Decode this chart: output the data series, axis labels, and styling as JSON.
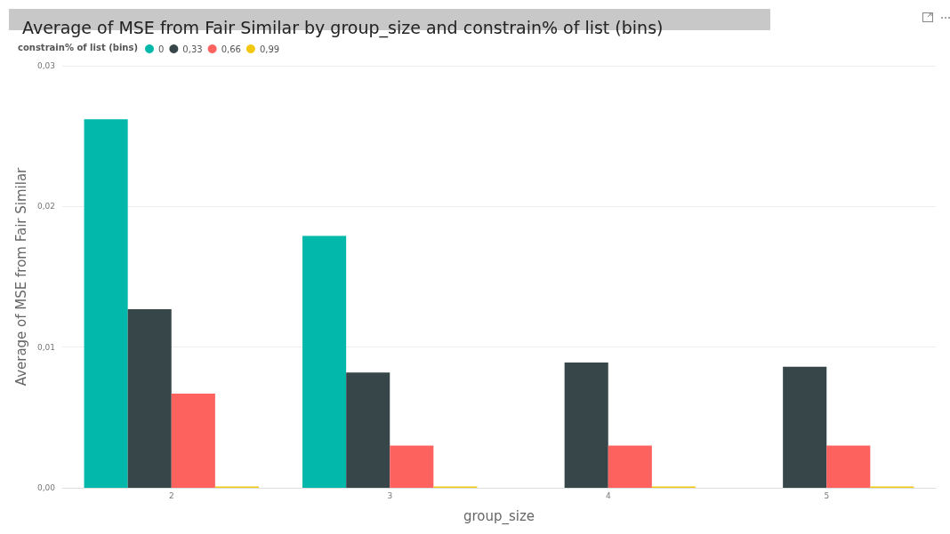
{
  "chart_data": {
    "type": "bar",
    "title": "Average of MSE from Fair Similar by group_size and constrain% of list (bins)",
    "xlabel": "group_size",
    "ylabel": "Average of MSE from Fair Similar",
    "legend_title": "constrain% of list (bins)",
    "categories": [
      "2",
      "3",
      "4",
      "5"
    ],
    "series": [
      {
        "name": "0",
        "color": "#01b8aa",
        "values": [
          0.0262,
          0.0179,
          null,
          null
        ]
      },
      {
        "name": "0,33",
        "color": "#374649",
        "values": [
          0.0127,
          0.0082,
          0.0089,
          0.0086
        ]
      },
      {
        "name": "0,66",
        "color": "#fd625e",
        "values": [
          0.0067,
          0.003,
          0.003,
          0.003
        ]
      },
      {
        "name": "0,99",
        "color": "#f2c80f",
        "values": [
          0.0001,
          0.0001,
          0.0001,
          0.0001
        ]
      }
    ],
    "ylim": [
      0,
      0.03
    ],
    "yticks": [
      {
        "value": 0,
        "label": "0,00"
      },
      {
        "value": 0.01,
        "label": "0,01"
      },
      {
        "value": 0.02,
        "label": "0,02"
      },
      {
        "value": 0.03,
        "label": "0,03"
      }
    ],
    "grid": "y",
    "legend": "top left"
  }
}
